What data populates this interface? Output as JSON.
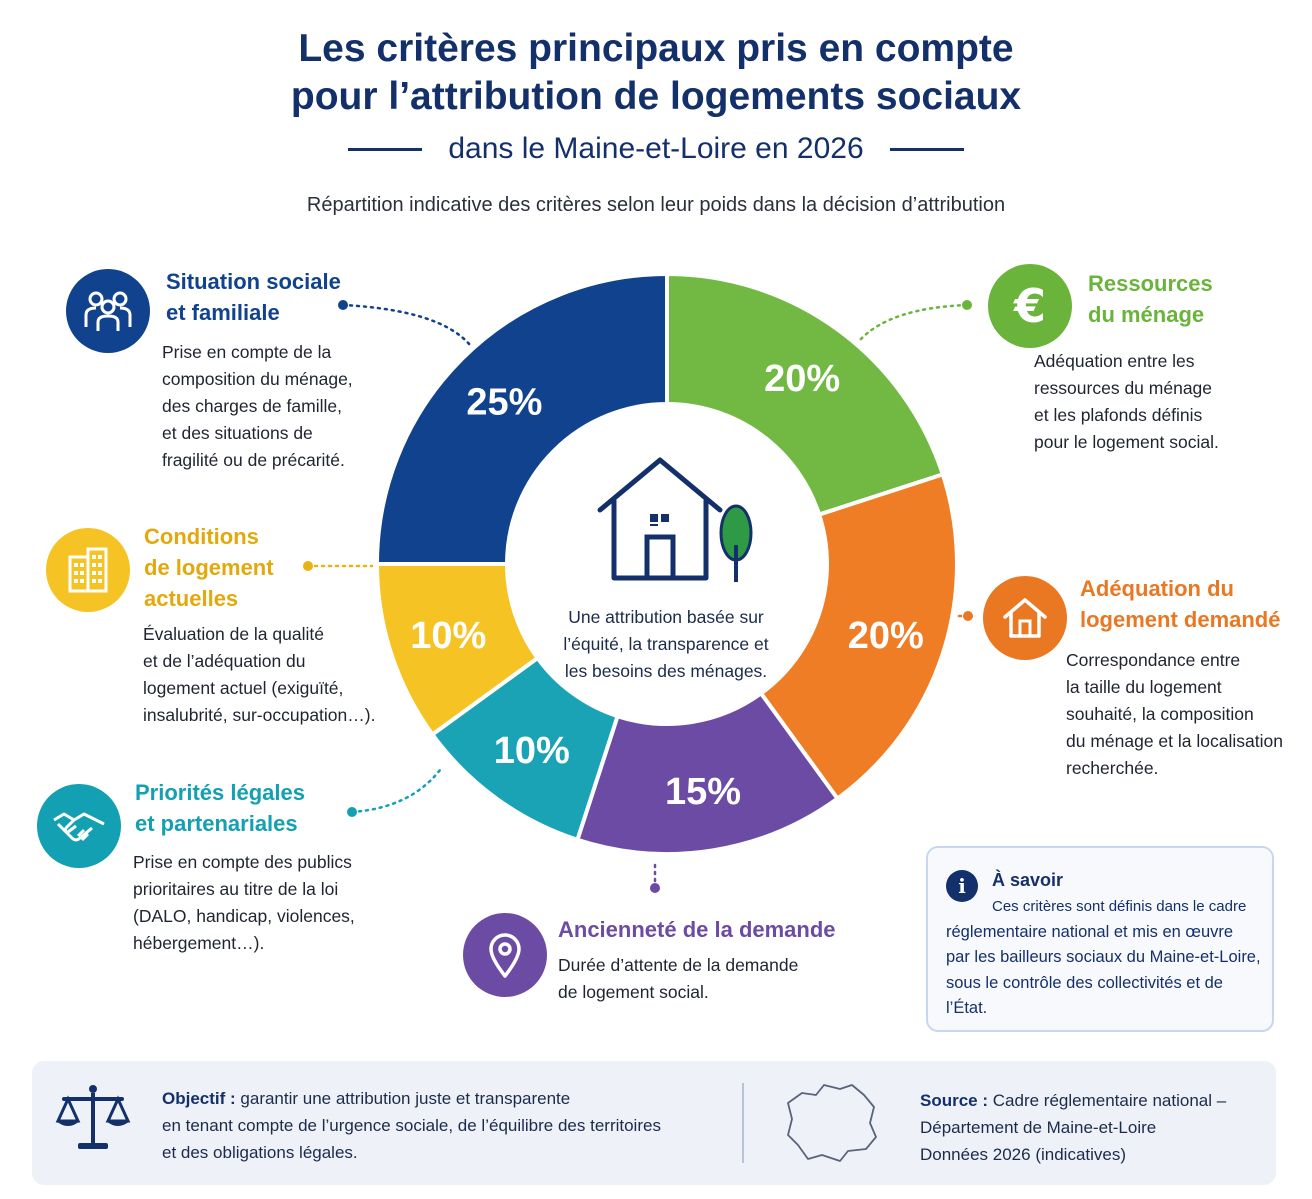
{
  "header": {
    "title_line1": "Les critères principaux pris en compte",
    "title_line2": "pour l’attribution de logements sociaux",
    "subtitle": "dans le Maine-et-Loire en 2026",
    "lead": "Répartition indicative des critères selon leur poids dans la décision d’attribution"
  },
  "chart_data": {
    "type": "pie",
    "donut": true,
    "categories": [
      "Ressources du ménage",
      "Adéquation du logement demandé",
      "Ancienneté de la demande",
      "Priorités légales et partenariales",
      "Conditions de logement actuelles",
      "Situation sociale et familiale"
    ],
    "values": [
      20,
      20,
      15,
      10,
      10,
      25
    ],
    "value_labels": [
      "20%",
      "20%",
      "15%",
      "10%",
      "10%",
      "25%"
    ],
    "colors": [
      "#72b943",
      "#ef7d25",
      "#6c4ba5",
      "#19a3b5",
      "#f6c324",
      "#11428e"
    ],
    "center_text": "Une attribution basée sur l’équité, la transparence et les besoins des ménages."
  },
  "criteria": {
    "situation": {
      "title_l1": "Situation sociale",
      "title_l2": "et familiale",
      "desc": [
        "Prise en compte de la",
        "composition du ménage,",
        "des charges de famille,",
        "et des situations de",
        "fragilité ou de précarité."
      ],
      "color": "#11428e",
      "icon": "family-icon"
    },
    "conditions": {
      "title_l1": "Conditions",
      "title_l2": "de logement",
      "title_l3": "actuelles",
      "desc": [
        "Évaluation de la qualité",
        "et de l’adéquation du",
        "logement actuel (exiguïté,",
        "insalubrité, sur-occupation…)."
      ],
      "color": "#e9b210",
      "icon": "building-icon"
    },
    "priorites": {
      "title_l1": "Priorités légales",
      "title_l2": "et partenariales",
      "desc": [
        "Prise en compte des publics",
        "prioritaires au titre de la loi",
        "(DALO, handicap, violences,",
        "hébergement…)."
      ],
      "color": "#12a0b2",
      "icon": "handshake-icon"
    },
    "ressources": {
      "title_l1": "Ressources",
      "title_l2": "du ménage",
      "desc": [
        "Adéquation entre les",
        "ressources du ménage",
        "et les plafonds définis",
        "pour le logement social."
      ],
      "color": "#6bb43c",
      "icon": "euro-icon"
    },
    "adequation": {
      "title_l1": "Adéquation du",
      "title_l2": "logement demandé",
      "desc": [
        "Correspondance entre",
        "la taille du logement",
        "souhaité, la composition",
        "du ménage et la localisation",
        "recherchée."
      ],
      "color": "#ea7722",
      "icon": "house-icon"
    },
    "anciennete": {
      "title": "Ancienneté de la demande",
      "desc": [
        "Durée d’attente de la demande",
        "de logement social."
      ],
      "color": "#6c4ba5",
      "icon": "location-pin-icon"
    }
  },
  "info": {
    "title": "À savoir",
    "lines": [
      "Ces critères sont définis dans le cadre",
      "réglementaire national et mis en œuvre",
      "par les bailleurs sociaux du Maine-et-Loire,",
      "sous le contrôle des collectivités et de",
      "l’État."
    ]
  },
  "footer": {
    "objectif_label": "Objectif :",
    "objectif_l1": "garantir une attribution juste et transparente",
    "objectif_l2": "en tenant compte de l’urgence sociale, de l’équilibre des territoires",
    "objectif_l3": "et des obligations légales.",
    "source_label": "Source :",
    "source_l1": "Cadre réglementaire national –",
    "source_l2": "Département de Maine-et-Loire",
    "source_l3": "Données 2026 (indicatives)"
  }
}
